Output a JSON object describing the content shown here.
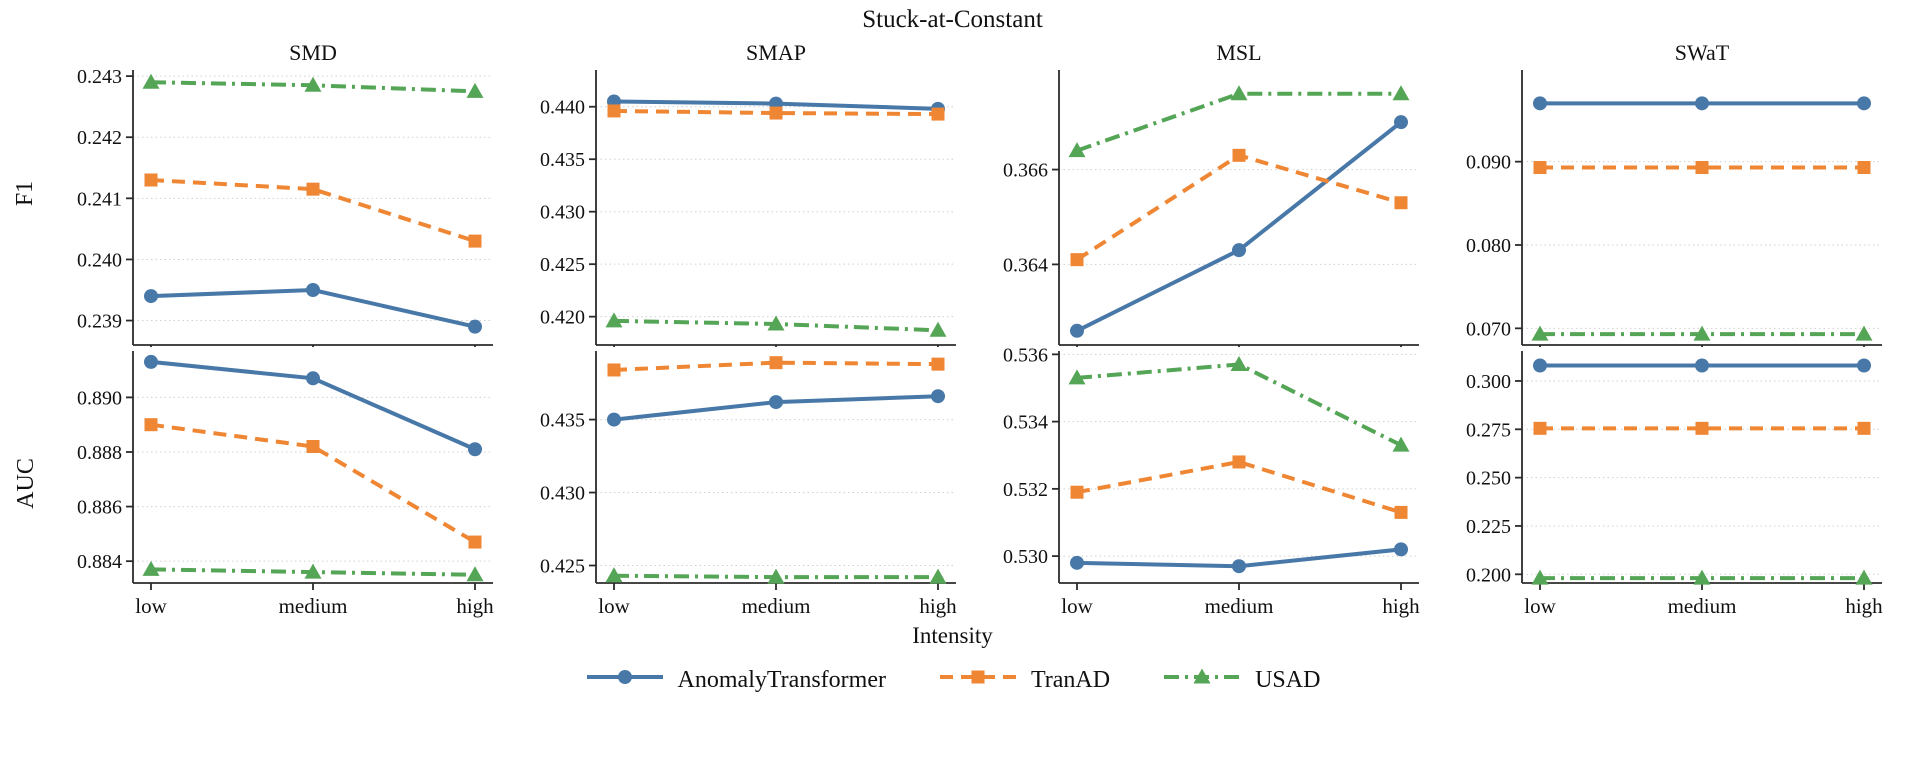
{
  "chart_data": {
    "type": "line",
    "title": "Stuck-at-Constant",
    "xlabel": "Intensity",
    "row_labels": [
      "F1",
      "AUC"
    ],
    "col_labels": [
      "SMD",
      "SMAP",
      "MSL",
      "SWaT"
    ],
    "categories": [
      "low",
      "medium",
      "high"
    ],
    "grid": true,
    "legend_position": "bottom",
    "axis_color": "#2b2b2b",
    "grid_color": "#d0d0d0",
    "series_styles": [
      {
        "name": "AnomalyTransformer",
        "color": "#4878A8",
        "marker": "circle",
        "line": "solid"
      },
      {
        "name": "TranAD",
        "color": "#EF8633",
        "marker": "square",
        "line": "dashed"
      },
      {
        "name": "USAD",
        "color": "#55A557",
        "marker": "triangle",
        "line": "dashdot"
      }
    ],
    "subplots": [
      {
        "row": "F1",
        "col": "SMD",
        "yticks": [
          "0.239",
          "0.240",
          "0.241",
          "0.242",
          "0.243"
        ],
        "ylim": [
          0.2386,
          0.2431
        ],
        "series": [
          {
            "name": "AnomalyTransformer",
            "values": [
              0.2394,
              0.2395,
              0.2389
            ]
          },
          {
            "name": "TranAD",
            "values": [
              0.2413,
              0.24115,
              0.2403
            ]
          },
          {
            "name": "USAD",
            "values": [
              0.2429,
              0.24285,
              0.24275
            ]
          }
        ]
      },
      {
        "row": "F1",
        "col": "SMAP",
        "yticks": [
          "0.420",
          "0.425",
          "0.430",
          "0.435",
          "0.440"
        ],
        "ylim": [
          0.4173,
          0.4435
        ],
        "series": [
          {
            "name": "AnomalyTransformer",
            "values": [
              0.4405,
              0.4403,
              0.4398
            ]
          },
          {
            "name": "TranAD",
            "values": [
              0.4396,
              0.4394,
              0.4393
            ]
          },
          {
            "name": "USAD",
            "values": [
              0.4196,
              0.4193,
              0.4187
            ]
          }
        ]
      },
      {
        "row": "F1",
        "col": "MSL",
        "yticks": [
          "0.364",
          "0.366"
        ],
        "ylim": [
          0.3623,
          0.3681
        ],
        "series": [
          {
            "name": "AnomalyTransformer",
            "values": [
              0.3626,
              0.3643,
              0.367
            ]
          },
          {
            "name": "TranAD",
            "values": [
              0.3641,
              0.3663,
              0.3653
            ]
          },
          {
            "name": "USAD",
            "values": [
              0.3664,
              0.3676,
              0.3676
            ]
          }
        ]
      },
      {
        "row": "F1",
        "col": "SWaT",
        "yticks": [
          "0.070",
          "0.080",
          "0.090"
        ],
        "ylim": [
          0.068,
          0.101
        ],
        "series": [
          {
            "name": "AnomalyTransformer",
            "values": [
              0.097,
              0.097,
              0.097
            ]
          },
          {
            "name": "TranAD",
            "values": [
              0.0893,
              0.0893,
              0.0893
            ]
          },
          {
            "name": "USAD",
            "values": [
              0.0693,
              0.0693,
              0.0693
            ]
          }
        ]
      },
      {
        "row": "AUC",
        "col": "SMD",
        "yticks": [
          "0.884",
          "0.886",
          "0.888",
          "0.890"
        ],
        "ylim": [
          0.8832,
          0.8917
        ],
        "series": [
          {
            "name": "AnomalyTransformer",
            "values": [
              0.8913,
              0.8907,
              0.8881
            ]
          },
          {
            "name": "TranAD",
            "values": [
              0.889,
              0.8882,
              0.8847
            ]
          },
          {
            "name": "USAD",
            "values": [
              0.8837,
              0.8836,
              0.8835
            ]
          }
        ]
      },
      {
        "row": "AUC",
        "col": "SMAP",
        "yticks": [
          "0.425",
          "0.430",
          "0.435"
        ],
        "ylim": [
          0.4238,
          0.4397
        ],
        "series": [
          {
            "name": "AnomalyTransformer",
            "values": [
              0.435,
              0.4362,
              0.4366
            ]
          },
          {
            "name": "TranAD",
            "values": [
              0.4384,
              0.4389,
              0.4388
            ]
          },
          {
            "name": "USAD",
            "values": [
              0.4243,
              0.4242,
              0.4242
            ]
          }
        ]
      },
      {
        "row": "AUC",
        "col": "MSL",
        "yticks": [
          "0.530",
          "0.532",
          "0.534",
          "0.536"
        ],
        "ylim": [
          0.5292,
          0.5361
        ],
        "series": [
          {
            "name": "AnomalyTransformer",
            "values": [
              0.5298,
              0.5297,
              0.5302
            ]
          },
          {
            "name": "TranAD",
            "values": [
              0.5319,
              0.5328,
              0.5313
            ]
          },
          {
            "name": "USAD",
            "values": [
              0.5353,
              0.5357,
              0.5333
            ]
          }
        ]
      },
      {
        "row": "AUC",
        "col": "SWaT",
        "yticks": [
          "0.200",
          "0.225",
          "0.250",
          "0.275",
          "0.300"
        ],
        "ylim": [
          0.1955,
          0.3155
        ],
        "series": [
          {
            "name": "AnomalyTransformer",
            "values": [
              0.308,
              0.308,
              0.308
            ]
          },
          {
            "name": "TranAD",
            "values": [
              0.2755,
              0.2755,
              0.2755
            ]
          },
          {
            "name": "USAD",
            "values": [
              0.198,
              0.198,
              0.198
            ]
          }
        ]
      }
    ]
  }
}
